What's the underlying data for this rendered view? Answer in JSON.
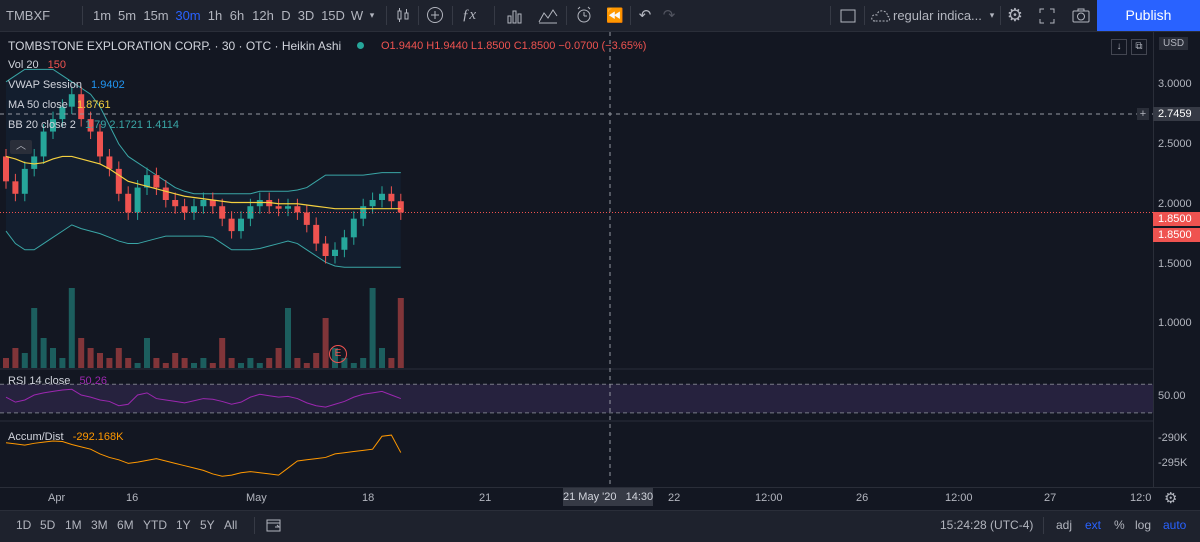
{
  "toolbar": {
    "symbol": "TMBXF",
    "intervals": [
      "1m",
      "5m",
      "15m",
      "30m",
      "1h",
      "6h",
      "12h",
      "D",
      "3D",
      "15D",
      "W"
    ],
    "active_interval": "30m",
    "chart_type_icon": "candles-icon",
    "indicator_template": "regular indica...",
    "publish": "Publish"
  },
  "legend": {
    "title": "TOMBSTONE EXPLORATION CORP. · 30 · OTC · Heikin Ashi",
    "ohlc": "O1.9440  H1.9440  L1.8500  C1.8500  −0.0700 (−3.65%)",
    "vol_name": "Vol 20",
    "vol_value": "150",
    "vwap_name": "VWAP Session",
    "vwap_value": "1.9402",
    "ma_name": "MA 50 close",
    "ma_value": "1.8761",
    "bb_name": "BB 20 close 2",
    "bb_values": "1.79  2.1721  1.4114",
    "rsi_name": "RSI 14 close",
    "rsi_value": "50.26",
    "ad_name": "Accum/Dist",
    "ad_value": "-292.168K"
  },
  "price_axis": {
    "currency": "USD",
    "labels": [
      "3.0000",
      "2.5000",
      "2.0000",
      "1.5000",
      "1.0000"
    ],
    "crosshair_price": "2.7459",
    "last_price": "1.8500",
    "last_price_2": "1.8500",
    "rsi_label": "50.00",
    "ad_labels": [
      "-290K",
      "-295K"
    ]
  },
  "time_axis": {
    "labels": [
      "Apr",
      "16",
      "May",
      "18",
      "21",
      "22",
      "12:00",
      "26",
      "12:00",
      "27",
      "12:0"
    ],
    "crosshair_time": "21 May '20   14:30"
  },
  "bottom": {
    "ranges": [
      "1D",
      "5D",
      "1M",
      "3M",
      "6M",
      "YTD",
      "1Y",
      "5Y",
      "All"
    ],
    "clock": "15:24:28 (UTC-4)",
    "options": [
      "adj",
      "ext",
      "%",
      "log",
      "auto"
    ]
  },
  "colors": {
    "up": "#26a69a",
    "down": "#ef5350",
    "ma": "#f4d03f",
    "bb": "#3aa6a6",
    "rsi": "#9c27b0",
    "ad": "#ff9800",
    "accent": "#2962ff"
  },
  "chart_data": {
    "type": "candlestick",
    "title": "TOMBSTONE EXPLORATION CORP. · 30 · OTC · Heikin Ashi",
    "ylim": [
      0.6,
      3.3
    ],
    "candles": [
      {
        "o": 2.3,
        "c": 2.1
      },
      {
        "o": 2.1,
        "c": 2.0
      },
      {
        "o": 2.0,
        "c": 2.2
      },
      {
        "o": 2.2,
        "c": 2.3
      },
      {
        "o": 2.3,
        "c": 2.5
      },
      {
        "o": 2.5,
        "c": 2.6
      },
      {
        "o": 2.6,
        "c": 2.7
      },
      {
        "o": 2.7,
        "c": 2.8
      },
      {
        "o": 2.8,
        "c": 2.6
      },
      {
        "o": 2.6,
        "c": 2.5
      },
      {
        "o": 2.5,
        "c": 2.3
      },
      {
        "o": 2.3,
        "c": 2.2
      },
      {
        "o": 2.2,
        "c": 2.0
      },
      {
        "o": 2.0,
        "c": 1.85
      },
      {
        "o": 1.85,
        "c": 2.05
      },
      {
        "o": 2.05,
        "c": 2.15
      },
      {
        "o": 2.15,
        "c": 2.05
      },
      {
        "o": 2.05,
        "c": 1.95
      },
      {
        "o": 1.95,
        "c": 1.9
      },
      {
        "o": 1.9,
        "c": 1.85
      },
      {
        "o": 1.85,
        "c": 1.9
      },
      {
        "o": 1.9,
        "c": 1.95
      },
      {
        "o": 1.95,
        "c": 1.9
      },
      {
        "o": 1.9,
        "c": 1.8
      },
      {
        "o": 1.8,
        "c": 1.7
      },
      {
        "o": 1.7,
        "c": 1.8
      },
      {
        "o": 1.8,
        "c": 1.9
      },
      {
        "o": 1.9,
        "c": 1.95
      },
      {
        "o": 1.95,
        "c": 1.9
      },
      {
        "o": 1.9,
        "c": 1.88
      },
      {
        "o": 1.88,
        "c": 1.9
      },
      {
        "o": 1.9,
        "c": 1.85
      },
      {
        "o": 1.85,
        "c": 1.75
      },
      {
        "o": 1.75,
        "c": 1.6
      },
      {
        "o": 1.6,
        "c": 1.5
      },
      {
        "o": 1.5,
        "c": 1.55
      },
      {
        "o": 1.55,
        "c": 1.65
      },
      {
        "o": 1.65,
        "c": 1.8
      },
      {
        "o": 1.8,
        "c": 1.9
      },
      {
        "o": 1.9,
        "c": 1.95
      },
      {
        "o": 1.95,
        "c": 2.0
      },
      {
        "o": 2.0,
        "c": 1.94
      },
      {
        "o": 1.94,
        "c": 1.85
      }
    ],
    "ma": [
      2.3,
      2.28,
      2.25,
      2.24,
      2.25,
      2.28,
      2.3,
      2.3,
      2.28,
      2.26,
      2.24,
      2.2,
      2.15,
      2.1,
      2.08,
      2.06,
      2.04,
      2.02,
      2.0,
      1.98,
      1.97,
      1.96,
      1.95,
      1.94,
      1.93,
      1.93,
      1.93,
      1.93,
      1.93,
      1.92,
      1.92,
      1.92,
      1.91,
      1.9,
      1.89,
      1.88,
      1.88,
      1.88,
      1.88,
      1.88,
      1.88,
      1.88,
      1.88
    ],
    "bb_upper": [
      2.9,
      2.95,
      3.0,
      3.0,
      3.0,
      3.0,
      2.95,
      2.9,
      2.85,
      2.8,
      2.7,
      2.55,
      2.4,
      2.3,
      2.25,
      2.2,
      2.15,
      2.1,
      2.05,
      2.02,
      2.0,
      2.0,
      2.0,
      2.0,
      2.0,
      2.0,
      2.0,
      2.02,
      2.02,
      2.02,
      2.02,
      2.03,
      2.05,
      2.1,
      2.15,
      2.15,
      2.15,
      2.15,
      2.15,
      2.16,
      2.17,
      2.17,
      2.17
    ],
    "bb_lower": [
      1.7,
      1.6,
      1.55,
      1.55,
      1.6,
      1.65,
      1.7,
      1.75,
      1.72,
      1.7,
      1.68,
      1.65,
      1.62,
      1.6,
      1.6,
      1.62,
      1.64,
      1.66,
      1.66,
      1.66,
      1.66,
      1.66,
      1.65,
      1.6,
      1.55,
      1.55,
      1.55,
      1.56,
      1.58,
      1.6,
      1.62,
      1.6,
      1.55,
      1.5,
      1.45,
      1.42,
      1.41,
      1.41,
      1.41,
      1.41,
      1.41,
      1.41,
      1.41
    ],
    "volume": [
      0.1,
      0.2,
      0.15,
      0.6,
      0.3,
      0.2,
      0.1,
      0.8,
      0.3,
      0.2,
      0.15,
      0.1,
      0.2,
      0.1,
      0.05,
      0.3,
      0.1,
      0.05,
      0.15,
      0.1,
      0.05,
      0.1,
      0.05,
      0.3,
      0.1,
      0.05,
      0.1,
      0.05,
      0.1,
      0.2,
      0.6,
      0.1,
      0.05,
      0.15,
      0.5,
      0.2,
      0.1,
      0.05,
      0.1,
      0.8,
      0.2,
      0.1,
      0.7
    ],
    "rsi": [
      52,
      45,
      48,
      55,
      58,
      60,
      62,
      63,
      55,
      52,
      48,
      46,
      40,
      42,
      55,
      58,
      50,
      48,
      46,
      44,
      47,
      50,
      49,
      46,
      42,
      45,
      52,
      56,
      54,
      52,
      53,
      50,
      44,
      40,
      38,
      42,
      46,
      52,
      56,
      58,
      60,
      55,
      50
    ],
    "ad": [
      -290.5,
      -290.7,
      -290.9,
      -290.6,
      -290.4,
      -290.2,
      -290.3,
      -290.8,
      -291.2,
      -291.6,
      -292.4,
      -293.0,
      -293.4,
      -294.0,
      -293.8,
      -293.5,
      -293.2,
      -293.6,
      -294.0,
      -294.4,
      -294.8,
      -295.2,
      -295.8,
      -296.2,
      -296.0,
      -295.6,
      -295.4,
      -295.6,
      -295.8,
      -296.0,
      -294.8,
      -293.6,
      -293.4,
      -293.2,
      -293.0,
      -292.4,
      -292.2,
      -292.0,
      -291.8,
      -291.6,
      -289.4,
      -289.2,
      -292.17
    ]
  }
}
